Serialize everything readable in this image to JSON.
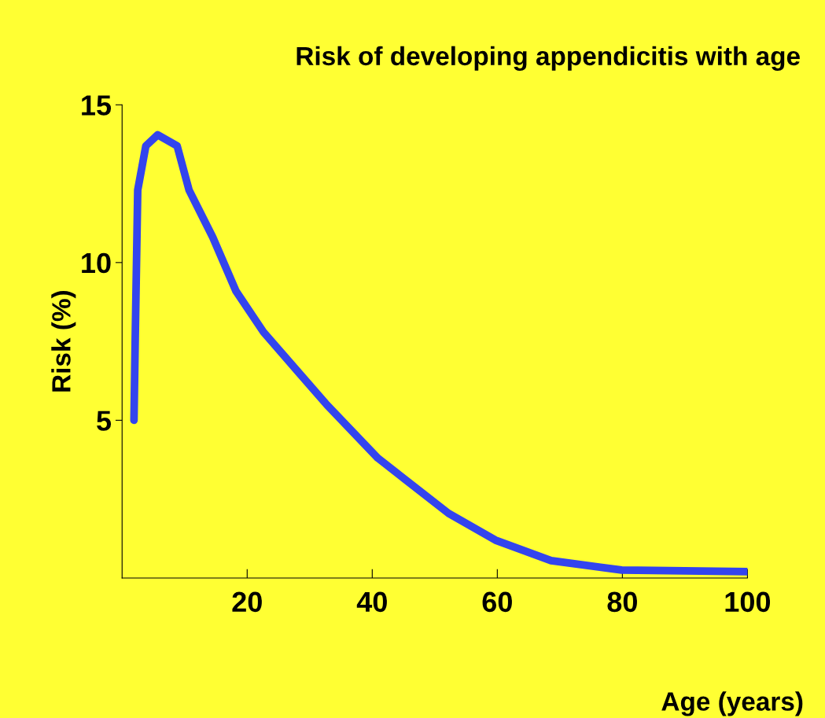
{
  "chart_data": {
    "type": "line",
    "title": "Risk of developing appendicitis with age",
    "xlabel": "Age (years)",
    "ylabel": "Risk (%)",
    "series": [
      {
        "color": "#3344ee",
        "x": [
          1.9,
          2.1,
          2.5,
          3.8,
          5.7,
          8.8,
          10.7,
          14.5,
          18.2,
          22.6,
          28.3,
          32.7,
          40.9,
          52.2,
          59.7,
          68.6,
          79.9,
          100
        ],
        "values": [
          5,
          7.6,
          12.3,
          13.7,
          14.05,
          13.7,
          12.3,
          10.8,
          9.1,
          7.8,
          6.5,
          5.5,
          3.8,
          2.05,
          1.2,
          0.55,
          0.25,
          0.2
        ]
      }
    ],
    "xlim": [
      0,
      100
    ],
    "ylim": [
      0,
      15
    ],
    "xticks": [
      20,
      40,
      60,
      80,
      100
    ],
    "yticks": [
      5,
      10,
      15
    ],
    "grid": false,
    "legend": false,
    "marker": "none",
    "line_style": "solid"
  }
}
